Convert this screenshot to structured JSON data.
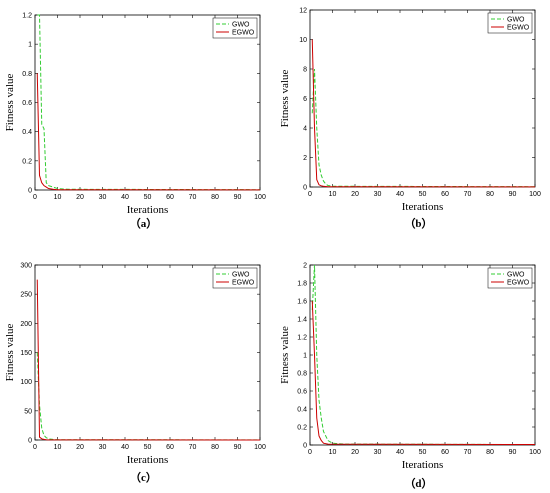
{
  "series_styles": [
    {
      "name": "GWO",
      "color": "#33cc33",
      "dash": "4,2"
    },
    {
      "name": "EGWO",
      "color": "#cc0000",
      "dash": ""
    }
  ],
  "chart_data": [
    {
      "type": "line",
      "caption": "（a）",
      "xlabel": "Iterations",
      "ylabel": "Fitness value",
      "xlim": [
        0,
        100
      ],
      "ylim": [
        0,
        1.2
      ],
      "xticks": [
        "0",
        "10",
        "20",
        "30",
        "40",
        "50",
        "60",
        "70",
        "80",
        "90",
        "100"
      ],
      "yticks": [
        "0",
        "0.2",
        "0.4",
        "0.6",
        "0.8",
        "1",
        "1.2"
      ],
      "legend": "top-right",
      "series": [
        {
          "name": "GWO",
          "x": [
            1,
            2,
            3,
            4,
            5,
            6,
            8,
            10,
            15,
            100
          ],
          "y": [
            1.2,
            1.2,
            0.45,
            0.42,
            0.05,
            0.03,
            0.02,
            0.01,
            0.005,
            0.002
          ]
        },
        {
          "name": "EGWO",
          "x": [
            1,
            2,
            3,
            4,
            5,
            6,
            8,
            10,
            100
          ],
          "y": [
            0.8,
            0.1,
            0.05,
            0.03,
            0.02,
            0.01,
            0.005,
            0.002,
            0.001
          ]
        }
      ]
    },
    {
      "type": "line",
      "caption": "（b）",
      "xlabel": "Iterations",
      "ylabel": "Fitness value",
      "xlim": [
        0,
        100
      ],
      "ylim": [
        0,
        12
      ],
      "xticks": [
        "0",
        "10",
        "20",
        "30",
        "40",
        "50",
        "60",
        "70",
        "80",
        "90",
        "100"
      ],
      "yticks": [
        "0",
        "2",
        "4",
        "6",
        "8",
        "10",
        "12"
      ],
      "legend": "top-right",
      "series": [
        {
          "name": "GWO",
          "x": [
            1,
            2,
            3,
            4,
            5,
            6,
            7,
            8,
            10,
            100
          ],
          "y": [
            5,
            8,
            4,
            1.5,
            0.8,
            0.4,
            0.2,
            0.1,
            0.05,
            0.02
          ]
        },
        {
          "name": "EGWO",
          "x": [
            1,
            2,
            3,
            4,
            5,
            6,
            8,
            100
          ],
          "y": [
            10,
            4,
            0.5,
            0.15,
            0.08,
            0.05,
            0.02,
            0.01
          ]
        }
      ]
    },
    {
      "type": "line",
      "caption": "（c）",
      "xlabel": "Iterations",
      "ylabel": "Fitness value",
      "xlim": [
        0,
        100
      ],
      "ylim": [
        0,
        300
      ],
      "xticks": [
        "0",
        "10",
        "20",
        "30",
        "40",
        "50",
        "60",
        "70",
        "80",
        "90",
        "100"
      ],
      "yticks": [
        "0",
        "50",
        "100",
        "150",
        "200",
        "250",
        "300"
      ],
      "legend": "top-right",
      "series": [
        {
          "name": "GWO",
          "x": [
            1,
            2,
            3,
            4,
            5,
            6,
            8,
            10,
            100
          ],
          "y": [
            150,
            60,
            20,
            8,
            4,
            2,
            1,
            0.5,
            0.2
          ]
        },
        {
          "name": "EGWO",
          "x": [
            1,
            2,
            3,
            4,
            5,
            6,
            100
          ],
          "y": [
            275,
            5,
            2,
            1,
            0.5,
            0.2,
            0.1
          ]
        }
      ]
    },
    {
      "type": "line",
      "caption": "（d）",
      "xlabel": "Iterations",
      "ylabel": "Fitness value",
      "xlim": [
        0,
        100
      ],
      "ylim": [
        0,
        2
      ],
      "xticks": [
        "0",
        "10",
        "20",
        "30",
        "40",
        "50",
        "60",
        "70",
        "80",
        "90",
        "100"
      ],
      "yticks": [
        "0",
        "0.2",
        "0.4",
        "0.6",
        "0.8",
        "1",
        "1.2",
        "1.4",
        "1.6",
        "1.8",
        "2"
      ],
      "legend": "top-right",
      "series": [
        {
          "name": "GWO",
          "x": [
            1,
            2,
            3,
            4,
            5,
            6,
            8,
            10,
            15,
            100
          ],
          "y": [
            1.5,
            2.0,
            1.0,
            0.5,
            0.3,
            0.15,
            0.05,
            0.02,
            0.01,
            0.005
          ]
        },
        {
          "name": "EGWO",
          "x": [
            1,
            2,
            3,
            4,
            5,
            6,
            8,
            100
          ],
          "y": [
            1.6,
            1.0,
            0.3,
            0.1,
            0.05,
            0.02,
            0.01,
            0.005
          ]
        }
      ]
    }
  ]
}
